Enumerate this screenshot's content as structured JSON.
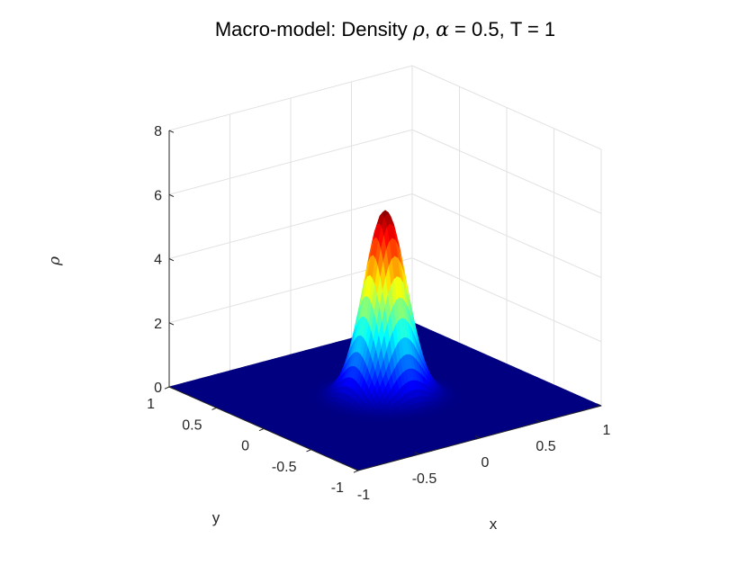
{
  "chart_data": {
    "type": "surface",
    "title": {
      "prefix": "Macro-model: Density ",
      "rho": "ρ",
      "comma": ", ",
      "alpha": "α",
      "suffix": " = 0.5, T = 1"
    },
    "xlabel": "x",
    "ylabel": "y",
    "zlabel": "ρ",
    "xlim": [
      -1,
      1
    ],
    "ylim": [
      -1,
      1
    ],
    "zlim": [
      0,
      8
    ],
    "x_ticks": [
      "-1",
      "-0.5",
      "0",
      "0.5",
      "1"
    ],
    "y_ticks": [
      "-1",
      "-0.5",
      "0",
      "0.5",
      "1"
    ],
    "z_ticks": [
      "0",
      "2",
      "4",
      "6",
      "8"
    ],
    "surface": {
      "function": "gaussian",
      "peak": 5.8,
      "center": [
        0,
        0
      ],
      "sigma": 0.14,
      "colormap": "jet"
    },
    "grid": true
  }
}
